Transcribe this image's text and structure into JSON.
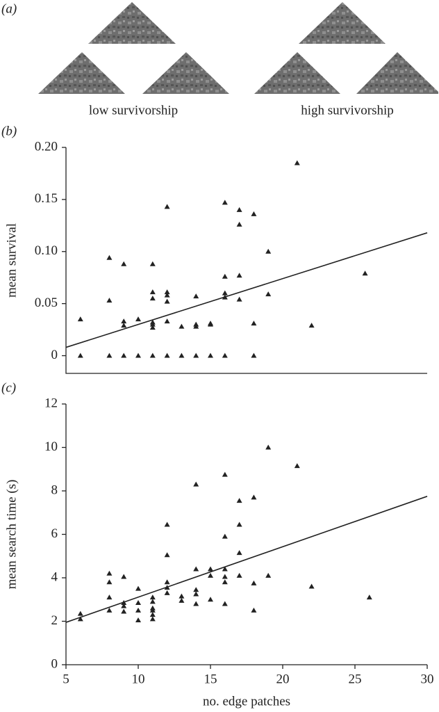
{
  "panel_a": {
    "label": "(a)",
    "captions": [
      "low survivorship",
      "high survivorship"
    ]
  },
  "chart_data": [
    {
      "type": "scatter",
      "panel_label": "(b)",
      "ylabel": "mean survival",
      "color": "#222222",
      "xlim": [
        5,
        30
      ],
      "ylim": [
        -0.017,
        0.2
      ],
      "yticks": [
        0,
        0.05,
        {
          "value": 0.1,
          "label": "0.10"
        },
        0.15,
        {
          "value": 0.2,
          "label": "0.20"
        }
      ],
      "x": [
        6,
        6,
        8,
        8,
        8,
        9,
        9,
        9,
        9,
        10,
        10,
        11,
        11,
        11,
        11,
        11,
        11,
        11,
        12,
        12,
        12,
        12,
        12,
        12,
        13,
        13,
        14,
        14,
        14,
        14,
        15,
        15,
        15,
        16,
        16,
        16,
        16,
        16,
        17,
        17,
        17,
        17,
        18,
        18,
        18,
        19,
        19,
        21,
        22,
        25.7
      ],
      "y": [
        0.035,
        0,
        0.094,
        0.053,
        0,
        0.088,
        0.033,
        0.029,
        0,
        0.035,
        0,
        0.088,
        0.061,
        0.055,
        0.032,
        0.03,
        0.027,
        0,
        0.143,
        0.061,
        0.058,
        0.052,
        0.033,
        0,
        0.028,
        0,
        0.057,
        0.03,
        0.028,
        0,
        0.031,
        0.03,
        0,
        0.147,
        0.076,
        0.06,
        0.056,
        0,
        0.14,
        0.126,
        0.077,
        0.054,
        0.136,
        0.031,
        0,
        0.1,
        0.059,
        0.185,
        0.029,
        0.079
      ],
      "trendline": {
        "x": [
          5,
          30
        ],
        "y": [
          0.008,
          0.118
        ]
      }
    },
    {
      "type": "scatter",
      "panel_label": "(c)",
      "xlabel": "no. edge patches",
      "ylabel": "mean search time (s)",
      "color": "#222222",
      "xlim": [
        5,
        30
      ],
      "ylim": [
        0,
        12
      ],
      "xticks": [
        5,
        10,
        15,
        20,
        25,
        30
      ],
      "yticks": [
        0,
        2,
        4,
        6,
        8,
        10,
        12
      ],
      "x": [
        6,
        6,
        8,
        8,
        8,
        8,
        9,
        9,
        9,
        9,
        10,
        10,
        10,
        10,
        11,
        11,
        11,
        11,
        11,
        11,
        12,
        12,
        12,
        12,
        12,
        13,
        13,
        14,
        14,
        14,
        14,
        14,
        15,
        15,
        15,
        16,
        16,
        16,
        16,
        16,
        16,
        17,
        17,
        17,
        17,
        18,
        18,
        18,
        19,
        19,
        21,
        22,
        26
      ],
      "y": [
        2.35,
        2.1,
        4.2,
        3.8,
        3.1,
        2.5,
        4.05,
        2.85,
        2.7,
        2.45,
        3.5,
        2.85,
        2.5,
        2.05,
        3.1,
        2.9,
        2.6,
        2.5,
        2.3,
        2.1,
        6.45,
        5.05,
        3.8,
        3.55,
        3.3,
        3.15,
        2.95,
        8.3,
        4.4,
        3.45,
        3.25,
        2.8,
        4.4,
        4.1,
        3.0,
        8.75,
        5.9,
        4.4,
        4.05,
        3.8,
        2.8,
        7.55,
        6.45,
        5.15,
        4.1,
        7.7,
        3.75,
        2.5,
        10.0,
        4.1,
        9.15,
        3.6,
        3.1
      ],
      "trendline": {
        "x": [
          5,
          30
        ],
        "y": [
          1.95,
          7.75
        ]
      }
    }
  ]
}
